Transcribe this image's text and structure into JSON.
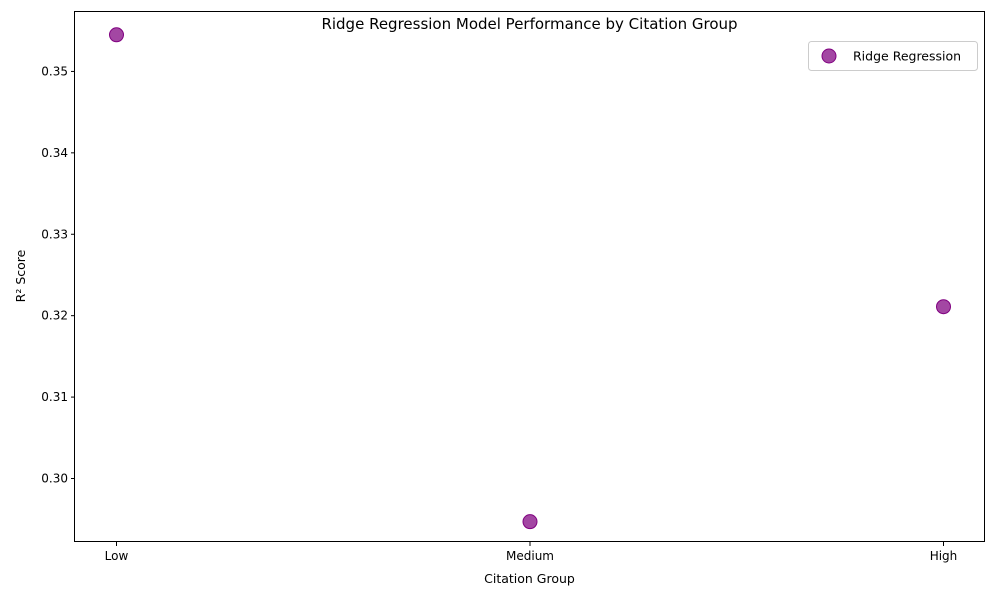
{
  "chart_data": {
    "type": "scatter",
    "title": "Ridge Regression Model Performance by Citation Group",
    "xlabel": "Citation Group",
    "ylabel": "R² Score",
    "categories": [
      "Low",
      "Medium",
      "High"
    ],
    "series": [
      {
        "name": "Ridge Regression",
        "color": "#800080",
        "values": [
          0.3545,
          0.2947,
          0.3211
        ]
      }
    ],
    "ylim": [
      0.2922,
      0.3573
    ],
    "yticks": [
      0.3,
      0.31,
      0.32,
      0.33,
      0.34,
      0.35
    ],
    "ytick_labels": [
      "0.30",
      "0.31",
      "0.32",
      "0.33",
      "0.34",
      "0.35"
    ],
    "grid": false,
    "legend_position": "top-right"
  }
}
